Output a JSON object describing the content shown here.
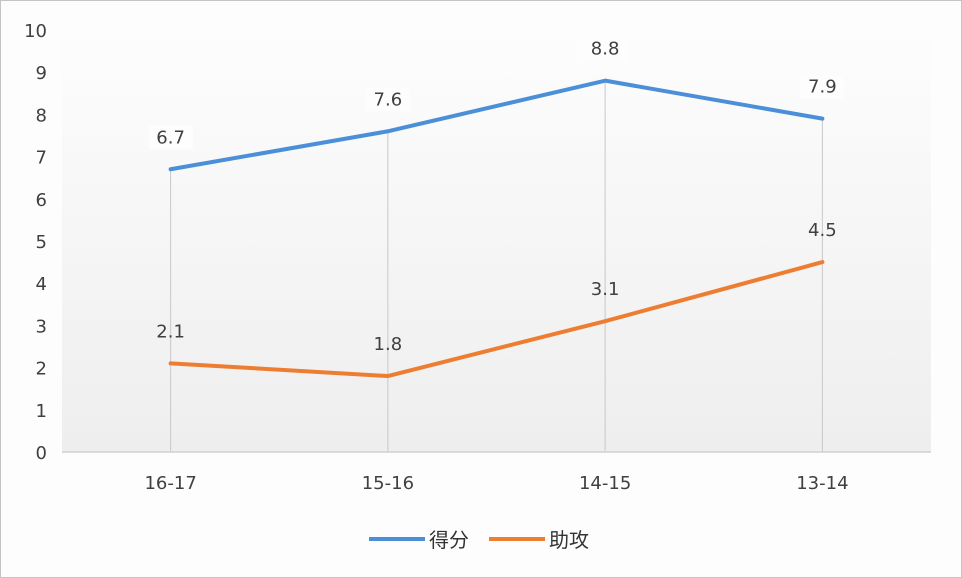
{
  "chart_data": {
    "type": "line",
    "title": "",
    "xlabel": "",
    "ylabel": "",
    "categories": [
      "16-17",
      "15-16",
      "14-15",
      "13-14"
    ],
    "series": [
      {
        "name": "得分",
        "values": [
          6.7,
          7.6,
          8.8,
          7.9
        ],
        "color": "#4a8fd8"
      },
      {
        "name": "助攻",
        "values": [
          2.1,
          1.8,
          3.1,
          4.5
        ],
        "color": "#ed7d31"
      }
    ],
    "ylim": [
      0,
      10
    ],
    "yticks": [
      "0",
      "1",
      "2",
      "3",
      "4",
      "5",
      "6",
      "7",
      "8",
      "9",
      "10"
    ],
    "grid": false,
    "drop_lines": true,
    "data_labels": true,
    "legend_position": "bottom"
  },
  "legend": {
    "items": [
      {
        "label": "得分",
        "color": "#4a8fd8"
      },
      {
        "label": "助攻",
        "color": "#ed7d31"
      }
    ]
  }
}
